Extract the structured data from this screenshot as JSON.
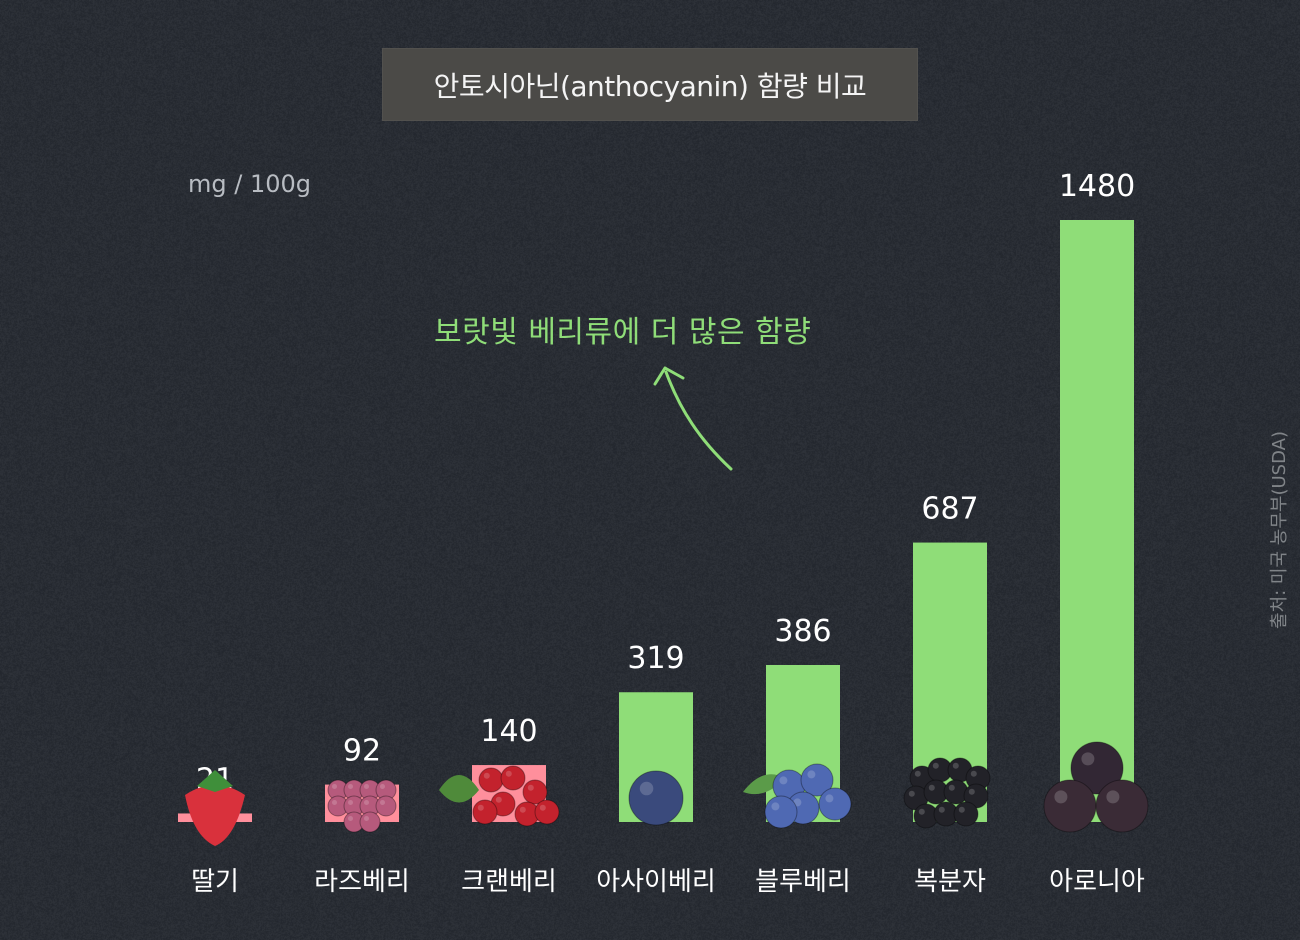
{
  "chart_data": {
    "type": "bar",
    "title": "안토시아닌(anthocyanin) 함량 비교",
    "unit_label": "mg / 100g",
    "annotation": "보랏빛 베리류에 더 많은 함량",
    "source": "출처: 미국 농무부(USDA)",
    "categories": [
      "딸기",
      "라즈베리",
      "크랜베리",
      "아사이베리",
      "블루베리",
      "복분자",
      "아로니아"
    ],
    "values": [
      21,
      92,
      140,
      319,
      386,
      687,
      1480
    ],
    "value_labels": [
      "21",
      "92",
      "140",
      "319",
      "386",
      "687",
      "1480"
    ],
    "bar_colors": [
      "#ff8f9c",
      "#ff8f9c",
      "#ff8f9c",
      "#8fdd78",
      "#8fdd78",
      "#8fdd78",
      "#8fdd78"
    ],
    "fruit_icons": [
      "strawberry-icon",
      "raspberry-icon",
      "cranberry-icon",
      "acai-berry-icon",
      "blueberry-icon",
      "black-raspberry-icon",
      "aronia-icon"
    ],
    "ylim": [
      0,
      1480
    ],
    "grid": false,
    "colors": {
      "background": "#262b33",
      "label_text": "#ffffff",
      "annotation": "#8fdd78"
    }
  }
}
